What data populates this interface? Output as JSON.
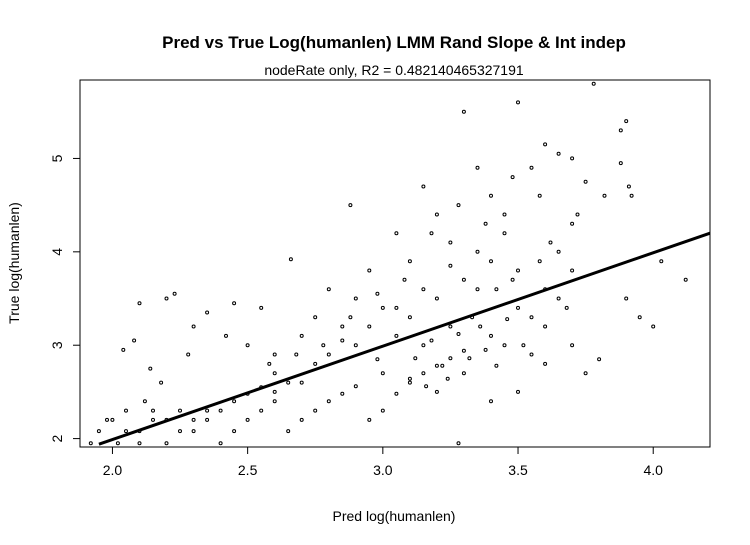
{
  "chart_data": {
    "type": "scatter",
    "title": "Pred vs True Log(humanlen) LMM Rand Slope & Int indep",
    "subtitle": "nodeRate only, R2 = 0.482140465327191",
    "xlabel": "Pred log(humanlen)",
    "ylabel": "True log(humanlen)",
    "xlim": [
      1.88,
      4.21
    ],
    "ylim": [
      1.91,
      5.84
    ],
    "x_ticks": [
      2.0,
      2.5,
      3.0,
      3.5,
      4.0
    ],
    "x_tick_labels": [
      "2.0",
      "2.5",
      "3.0",
      "3.5",
      "4.0"
    ],
    "y_ticks": [
      2,
      3,
      4,
      5
    ],
    "y_tick_labels": [
      "2",
      "3",
      "4",
      "5"
    ],
    "grid": false,
    "legend": "none",
    "fit_line": {
      "x": [
        1.95,
        4.21
      ],
      "y": [
        1.94,
        4.2
      ]
    },
    "colors": {
      "points": "#000000",
      "line": "#000000",
      "box": "#000000"
    },
    "points": [
      [
        1.92,
        1.95
      ],
      [
        1.95,
        2.08
      ],
      [
        2.0,
        2.2
      ],
      [
        2.05,
        2.3
      ],
      [
        2.1,
        2.08
      ],
      [
        2.1,
        1.95
      ],
      [
        2.15,
        2.2
      ],
      [
        2.2,
        1.95
      ],
      [
        2.25,
        2.08
      ],
      [
        2.3,
        2.2
      ],
      [
        2.35,
        2.3
      ],
      [
        2.4,
        1.95
      ],
      [
        2.45,
        2.08
      ],
      [
        2.5,
        2.2
      ],
      [
        2.55,
        2.3
      ],
      [
        2.6,
        2.4
      ],
      [
        2.65,
        2.08
      ],
      [
        2.7,
        2.2
      ],
      [
        2.75,
        2.3
      ],
      [
        2.8,
        2.4
      ],
      [
        2.85,
        2.48
      ],
      [
        2.9,
        2.56
      ],
      [
        2.95,
        2.2
      ],
      [
        3.0,
        2.3
      ],
      [
        3.05,
        2.48
      ],
      [
        3.1,
        2.64
      ],
      [
        3.15,
        2.7
      ],
      [
        3.2,
        2.78
      ],
      [
        3.25,
        2.86
      ],
      [
        3.3,
        2.94
      ],
      [
        2.04,
        2.95
      ],
      [
        2.08,
        3.05
      ],
      [
        2.1,
        3.45
      ],
      [
        2.14,
        2.75
      ],
      [
        2.18,
        2.6
      ],
      [
        2.2,
        3.5
      ],
      [
        2.23,
        3.55
      ],
      [
        2.28,
        2.9
      ],
      [
        2.3,
        3.2
      ],
      [
        2.35,
        3.35
      ],
      [
        2.42,
        3.1
      ],
      [
        2.45,
        3.45
      ],
      [
        2.5,
        3.0
      ],
      [
        2.55,
        3.4
      ],
      [
        2.6,
        2.9
      ],
      [
        2.66,
        3.92
      ],
      [
        2.7,
        3.1
      ],
      [
        2.75,
        3.3
      ],
      [
        2.8,
        3.6
      ],
      [
        2.85,
        3.2
      ],
      [
        2.88,
        4.5
      ],
      [
        2.9,
        3.5
      ],
      [
        2.95,
        3.8
      ],
      [
        3.0,
        3.4
      ],
      [
        3.05,
        4.2
      ],
      [
        3.1,
        3.9
      ],
      [
        3.15,
        4.7
      ],
      [
        3.2,
        4.4
      ],
      [
        3.25,
        4.1
      ],
      [
        3.3,
        5.5
      ],
      [
        3.35,
        4.9
      ],
      [
        3.4,
        4.6
      ],
      [
        3.45,
        4.4
      ],
      [
        3.5,
        5.6
      ],
      [
        3.55,
        4.9
      ],
      [
        3.6,
        5.15
      ],
      [
        3.65,
        5.05
      ],
      [
        3.7,
        5.0
      ],
      [
        3.75,
        4.75
      ],
      [
        3.78,
        5.8
      ],
      [
        3.82,
        4.6
      ],
      [
        3.88,
        4.95
      ],
      [
        3.9,
        5.4
      ],
      [
        3.88,
        5.3
      ],
      [
        3.91,
        4.7
      ],
      [
        3.92,
        4.6
      ],
      [
        3.8,
        2.85
      ],
      [
        3.9,
        3.5
      ],
      [
        3.95,
        3.3
      ],
      [
        4.0,
        3.2
      ],
      [
        4.03,
        3.9
      ],
      [
        4.12,
        3.7
      ],
      [
        3.28,
        1.95
      ],
      [
        3.4,
        2.4
      ],
      [
        3.5,
        2.5
      ],
      [
        3.6,
        2.8
      ],
      [
        3.7,
        3.0
      ],
      [
        3.75,
        2.7
      ],
      [
        3.5,
        3.8
      ],
      [
        3.6,
        3.6
      ],
      [
        3.65,
        4.0
      ],
      [
        3.7,
        4.3
      ],
      [
        3.45,
        3.0
      ],
      [
        3.35,
        3.6
      ],
      [
        3.55,
        3.3
      ],
      [
        3.25,
        3.2
      ],
      [
        3.15,
        3.0
      ],
      [
        3.05,
        3.1
      ],
      [
        2.98,
        2.85
      ],
      [
        3.1,
        2.6
      ],
      [
        3.2,
        2.5
      ],
      [
        3.3,
        2.7
      ],
      [
        3.4,
        3.1
      ],
      [
        3.5,
        3.4
      ],
      [
        3.55,
        2.9
      ],
      [
        3.6,
        3.2
      ],
      [
        3.65,
        3.5
      ],
      [
        3.7,
        3.8
      ],
      [
        2.7,
        2.6
      ],
      [
        2.6,
        2.5
      ],
      [
        2.5,
        2.48
      ],
      [
        2.4,
        2.3
      ],
      [
        2.3,
        2.08
      ],
      [
        2.2,
        2.2
      ],
      [
        2.6,
        2.7
      ],
      [
        2.8,
        2.9
      ],
      [
        2.9,
        3.0
      ],
      [
        3.0,
        2.7
      ],
      [
        3.1,
        3.3
      ],
      [
        3.2,
        3.5
      ],
      [
        3.3,
        3.7
      ],
      [
        3.4,
        3.9
      ],
      [
        3.45,
        4.2
      ],
      [
        3.35,
        4.0
      ],
      [
        3.25,
        3.85
      ],
      [
        3.15,
        3.6
      ],
      [
        3.05,
        3.4
      ],
      [
        2.95,
        3.2
      ],
      [
        2.85,
        3.05
      ],
      [
        2.75,
        2.8
      ],
      [
        2.65,
        2.6
      ],
      [
        2.55,
        2.55
      ],
      [
        2.45,
        2.4
      ],
      [
        2.35,
        2.2
      ],
      [
        2.25,
        2.3
      ],
      [
        2.15,
        2.3
      ],
      [
        2.05,
        2.08
      ],
      [
        1.98,
        2.2
      ],
      [
        2.02,
        1.95
      ],
      [
        2.12,
        2.4
      ],
      [
        3.33,
        3.3
      ],
      [
        3.38,
        2.95
      ],
      [
        3.42,
        3.6
      ],
      [
        3.48,
        3.7
      ],
      [
        3.52,
        3.0
      ],
      [
        3.58,
        3.9
      ],
      [
        3.62,
        4.1
      ],
      [
        3.68,
        3.4
      ],
      [
        3.72,
        4.4
      ],
      [
        3.58,
        4.6
      ],
      [
        3.48,
        4.8
      ],
      [
        3.38,
        4.3
      ],
      [
        3.28,
        4.5
      ],
      [
        3.18,
        4.2
      ],
      [
        3.08,
        3.7
      ],
      [
        2.98,
        3.55
      ],
      [
        2.88,
        3.3
      ],
      [
        2.78,
        3.0
      ],
      [
        2.68,
        2.9
      ],
      [
        2.58,
        2.8
      ],
      [
        3.12,
        2.86
      ],
      [
        3.18,
        3.05
      ],
      [
        3.22,
        2.78
      ],
      [
        3.28,
        3.12
      ],
      [
        3.32,
        2.86
      ],
      [
        3.36,
        3.2
      ],
      [
        3.42,
        2.78
      ],
      [
        3.46,
        3.28
      ],
      [
        3.24,
        2.64
      ],
      [
        3.16,
        2.56
      ]
    ]
  }
}
